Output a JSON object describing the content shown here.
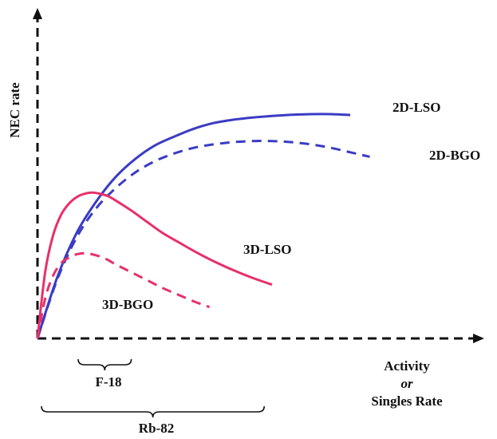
{
  "chart_data": {
    "type": "line",
    "title": "",
    "ylabel": "NEC rate",
    "xlabel_lines": [
      "Activity",
      "or",
      "Singles Rate"
    ],
    "xlim": [
      0,
      100
    ],
    "ylim": [
      0,
      100
    ],
    "grid": false,
    "ticks": "none",
    "series": [
      {
        "name": "2D-LSO",
        "color": "#3a3cc4",
        "dash": false,
        "x": [
          0,
          5,
          10,
          15,
          20,
          25,
          30,
          35,
          40,
          45,
          50,
          55,
          60,
          65,
          70,
          75,
          80
        ],
        "y": [
          0,
          27,
          47,
          61,
          72,
          80,
          86,
          90,
          93.5,
          96,
          97.5,
          98.5,
          99.2,
          99.7,
          100,
          100,
          99.6
        ]
      },
      {
        "name": "2D-BGO",
        "color": "#3a3cc4",
        "dash": true,
        "x": [
          0,
          5,
          10,
          15,
          20,
          25,
          30,
          35,
          40,
          45,
          50,
          55,
          60,
          65,
          70,
          75,
          80,
          85
        ],
        "y": [
          0,
          26,
          45,
          58,
          67,
          74,
          79,
          82.5,
          85,
          86.5,
          87.5,
          88,
          88,
          87.5,
          86.5,
          85,
          83,
          81
        ]
      },
      {
        "name": "3D-LSO",
        "color": "#e8306a",
        "dash": false,
        "x": [
          0,
          2,
          4,
          6,
          8,
          10,
          12,
          14,
          16,
          18,
          20,
          24,
          28,
          32,
          36,
          40,
          45,
          50,
          55,
          60
        ],
        "y": [
          0,
          30,
          46,
          55,
          60,
          63,
          64.5,
          65,
          64.5,
          63.5,
          61.5,
          57,
          52,
          47,
          43,
          39,
          34.5,
          30.5,
          27,
          24
        ]
      },
      {
        "name": "3D-BGO",
        "color": "#e8306a",
        "dash": true,
        "x": [
          0,
          2,
          4,
          6,
          8,
          10,
          12,
          14,
          16,
          18,
          20,
          24,
          28,
          32,
          36,
          40,
          44
        ],
        "y": [
          0,
          18,
          28,
          33.5,
          36,
          37.5,
          38,
          37.5,
          36.5,
          35,
          33,
          29.5,
          26,
          22.5,
          19.5,
          16.5,
          14
        ]
      }
    ],
    "annotations": [
      {
        "text": "F-18",
        "x_range": [
          10,
          24
        ]
      },
      {
        "text": "Rb-82",
        "x_range": [
          0,
          58
        ]
      }
    ]
  }
}
